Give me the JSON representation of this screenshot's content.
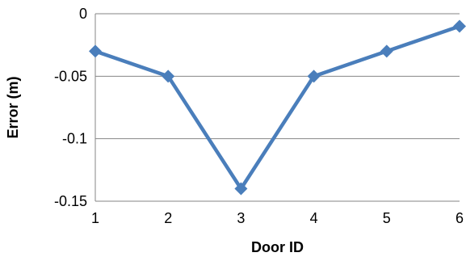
{
  "chart_data": {
    "type": "line",
    "title": "",
    "xlabel": "Door ID",
    "ylabel": "Error (m)",
    "categories": [
      "1",
      "2",
      "3",
      "4",
      "5",
      "6"
    ],
    "series": [
      {
        "values": [
          -0.03,
          -0.05,
          -0.14,
          -0.05,
          -0.03,
          -0.01
        ],
        "color": "#4a7ebb",
        "marker": "diamond"
      }
    ],
    "y_ticks": [
      "0",
      "-0.05",
      "-0.1",
      "-0.15"
    ],
    "y_tick_values": [
      0,
      -0.05,
      -0.1,
      -0.15
    ],
    "ylim": [
      -0.15,
      0
    ],
    "grid": "horizontal",
    "legend": "none"
  }
}
